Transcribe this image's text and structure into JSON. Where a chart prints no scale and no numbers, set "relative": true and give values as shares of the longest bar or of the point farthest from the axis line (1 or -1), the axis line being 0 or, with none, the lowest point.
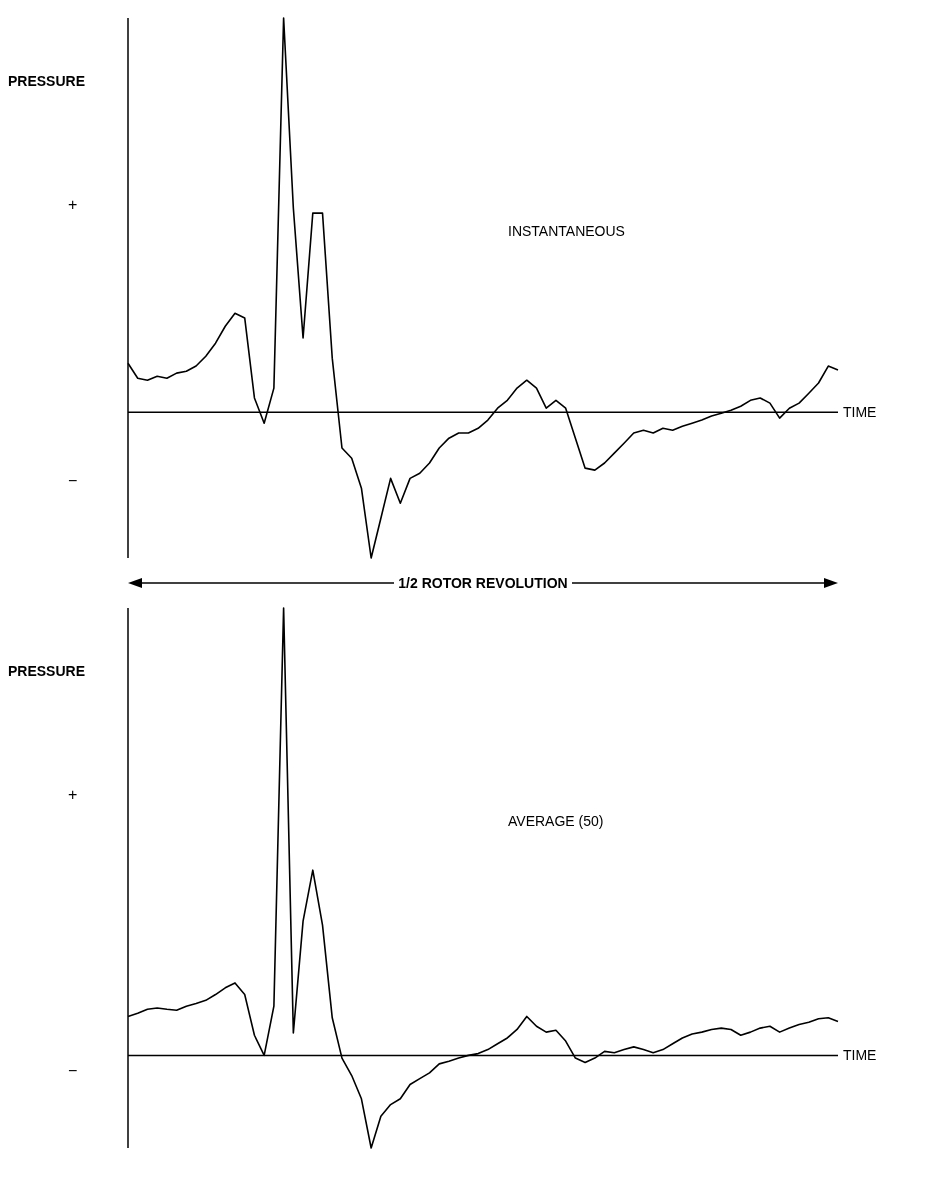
{
  "chart_data": [
    {
      "type": "line",
      "relative": true,
      "ylabel": "PRESSURE",
      "xlabel": "TIME",
      "annotations": [
        "+",
        "−",
        "1/2 ROTOR REVOLUTION"
      ],
      "categories": [
        null,
        null,
        null,
        null,
        null,
        null,
        null,
        null,
        null,
        null,
        null,
        null,
        null,
        null,
        null,
        null,
        null,
        null,
        null,
        null,
        null,
        null,
        null,
        null,
        null,
        null,
        null,
        null,
        null,
        null,
        null,
        null,
        null,
        null,
        null,
        null,
        null,
        null,
        null,
        null,
        null,
        null,
        null,
        null,
        null,
        null,
        null,
        null,
        null,
        null,
        null,
        null,
        null,
        null,
        null,
        null,
        null,
        null,
        null,
        null,
        null,
        null,
        null,
        null,
        null,
        null,
        null,
        null,
        null,
        null,
        null,
        null,
        null,
        null
      ],
      "series": [
        {
          "name": "INSTANTANEOUS",
          "color": "#000000",
          "values": [
            0.124,
            0.086,
            0.081,
            0.091,
            0.086,
            0.099,
            0.104,
            0.117,
            0.142,
            0.175,
            0.218,
            0.251,
            0.239,
            0.036,
            -0.028,
            0.061,
            1.0,
            0.518,
            0.188,
            0.505,
            0.505,
            0.137,
            -0.091,
            -0.117,
            -0.193,
            -0.37,
            -0.269,
            -0.168,
            -0.231,
            -0.168,
            -0.155,
            -0.129,
            -0.091,
            -0.066,
            -0.053,
            -0.053,
            -0.041,
            -0.02,
            0.01,
            0.03,
            0.061,
            0.081,
            0.061,
            0.01,
            0.03,
            0.01,
            -0.066,
            -0.142,
            -0.147,
            -0.129,
            -0.104,
            -0.079,
            -0.053,
            -0.046,
            -0.053,
            -0.041,
            -0.046,
            -0.036,
            -0.028,
            -0.02,
            -0.01,
            -0.003,
            0.005,
            0.015,
            0.03,
            0.036,
            0.023,
            -0.015,
            0.01,
            0.023,
            0.048,
            0.074,
            0.117,
            0.107
          ]
        }
      ]
    },
    {
      "type": "line",
      "relative": true,
      "ylabel": "PRESSURE",
      "xlabel": "TIME",
      "annotations": [
        "+",
        "−"
      ],
      "categories": [
        null,
        null,
        null,
        null,
        null,
        null,
        null,
        null,
        null,
        null,
        null,
        null,
        null,
        null,
        null,
        null,
        null,
        null,
        null,
        null,
        null,
        null,
        null,
        null,
        null,
        null,
        null,
        null,
        null,
        null,
        null,
        null,
        null,
        null,
        null,
        null,
        null,
        null,
        null,
        null,
        null,
        null,
        null,
        null,
        null,
        null,
        null,
        null,
        null,
        null,
        null,
        null,
        null,
        null,
        null,
        null,
        null,
        null,
        null,
        null,
        null,
        null,
        null,
        null,
        null,
        null,
        null,
        null,
        null,
        null,
        null,
        null,
        null,
        null
      ],
      "series": [
        {
          "name": "AVERAGE (50)",
          "color": "#000000",
          "values": [
            0.087,
            0.094,
            0.103,
            0.106,
            0.103,
            0.101,
            0.11,
            0.116,
            0.123,
            0.136,
            0.151,
            0.162,
            0.136,
            0.045,
            0,
            0.11,
            1.0,
            0.05,
            0.3,
            0.414,
            0.291,
            0.084,
            -0.006,
            -0.045,
            -0.097,
            -0.207,
            -0.136,
            -0.11,
            -0.097,
            -0.065,
            -0.052,
            -0.039,
            -0.019,
            -0.013,
            -0.006,
            0,
            0.004,
            0.013,
            0.026,
            0.039,
            0.058,
            0.087,
            0.065,
            0.052,
            0.056,
            0.032,
            -0.006,
            -0.016,
            -0.006,
            0.009,
            0.006,
            0.013,
            0.019,
            0.013,
            0.006,
            0.013,
            0.026,
            0.039,
            0.048,
            0.052,
            0.058,
            0.061,
            0.058,
            0.045,
            0.052,
            0.061,
            0.065,
            0.052,
            0.061,
            0.069,
            0.074,
            0.082,
            0.084,
            0.076
          ]
        }
      ]
    }
  ]
}
